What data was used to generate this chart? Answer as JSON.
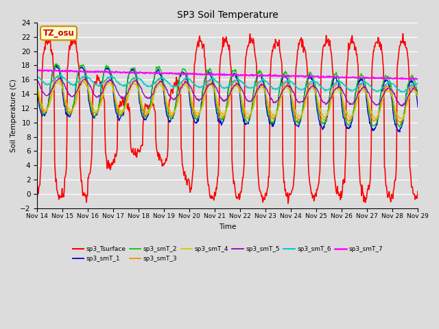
{
  "title": "SP3 Soil Temperature",
  "xlabel": "Time",
  "ylabel": "Soil Temperature (C)",
  "ylim": [
    -2,
    24
  ],
  "yticks": [
    -2,
    0,
    2,
    4,
    6,
    8,
    10,
    12,
    14,
    16,
    18,
    20,
    22,
    24
  ],
  "bg_color": "#dcdcdc",
  "plot_bg_color": "#dcdcdc",
  "annotation_text": "TZ_osu",
  "annotation_color": "#cc0000",
  "annotation_bg": "#ffffcc",
  "annotation_border": "#cc8800",
  "series_order": [
    "sp3_Tsurface",
    "sp3_smT_1",
    "sp3_smT_2",
    "sp3_smT_3",
    "sp3_smT_4",
    "sp3_smT_5",
    "sp3_smT_6",
    "sp3_smT_7"
  ],
  "series": {
    "sp3_Tsurface": {
      "color": "#ff0000",
      "lw": 1.2
    },
    "sp3_smT_1": {
      "color": "#0000dd",
      "lw": 1.0
    },
    "sp3_smT_2": {
      "color": "#00cc00",
      "lw": 1.0
    },
    "sp3_smT_3": {
      "color": "#ff8800",
      "lw": 1.0
    },
    "sp3_smT_4": {
      "color": "#cccc00",
      "lw": 1.0
    },
    "sp3_smT_5": {
      "color": "#9900bb",
      "lw": 1.0
    },
    "sp3_smT_6": {
      "color": "#00cccc",
      "lw": 1.2
    },
    "sp3_smT_7": {
      "color": "#ff00ff",
      "lw": 1.5
    }
  }
}
